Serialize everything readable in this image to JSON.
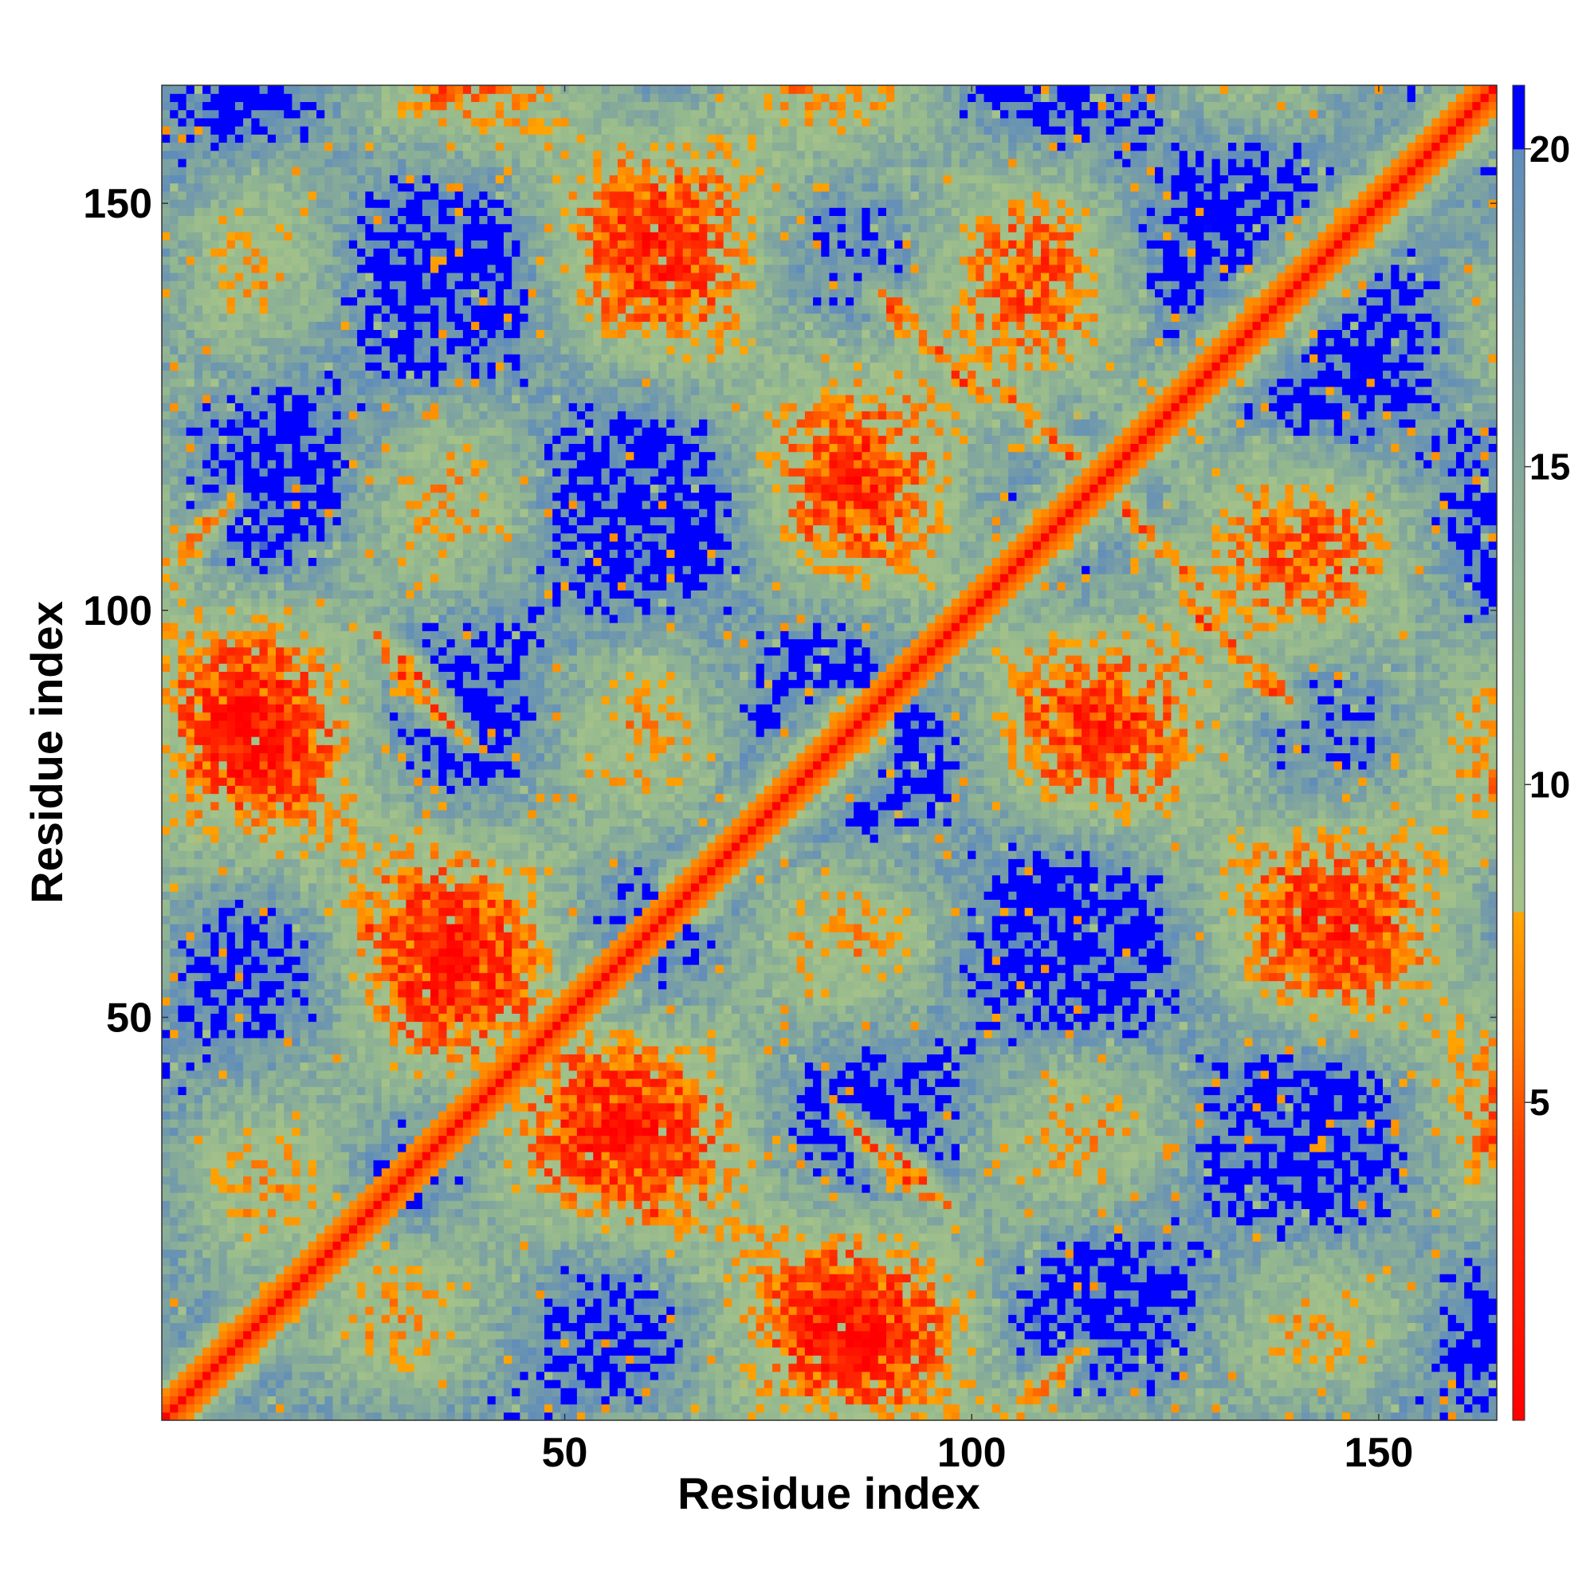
{
  "chart_data": {
    "type": "heatmap",
    "title": "",
    "xlabel": "Residue index",
    "ylabel": "Residue index",
    "n_residues": 164,
    "xlim": [
      1,
      164
    ],
    "ylim": [
      1,
      164
    ],
    "x_ticks": [
      50,
      100,
      150
    ],
    "y_ticks": [
      50,
      100,
      150
    ],
    "x_tick_labels": [
      "50",
      "100",
      "150"
    ],
    "y_tick_labels": [
      "50",
      "100",
      "150"
    ],
    "colorbar": {
      "range": [
        0,
        21
      ],
      "ticks": [
        5,
        10,
        15,
        20
      ],
      "tick_labels": [
        "5",
        "10",
        "15",
        "20"
      ],
      "placement": "right",
      "stops": [
        {
          "value": 0,
          "color": "#ff0000"
        },
        {
          "value": 4,
          "color": "#ff3300"
        },
        {
          "value": 6,
          "color": "#ff7700"
        },
        {
          "value": 8,
          "color": "#ffa500"
        },
        {
          "value": 8.01,
          "color": "#a4c289"
        },
        {
          "value": 12,
          "color": "#93b78f"
        },
        {
          "value": 16,
          "color": "#7ea3a0"
        },
        {
          "value": 20,
          "color": "#5f8cbb"
        },
        {
          "value": 20.01,
          "color": "#0000ff"
        },
        {
          "value": 21,
          "color": "#0000ff"
        }
      ]
    },
    "matrix_description": "Symmetric residue-residue distance map; near-zero (red) on the diagonal, far contacts saturate (blue).",
    "contact_features": [
      {
        "kind": "helix",
        "residues": [
          1,
          28
        ]
      },
      {
        "kind": "helix",
        "residues": [
          38,
          58
        ]
      },
      {
        "kind": "helix",
        "residues": [
          62,
          90
        ]
      },
      {
        "kind": "helix",
        "residues": [
          95,
          164
        ]
      },
      {
        "kind": "antiparallel",
        "i": [
          103,
          115
        ],
        "j": [
          119,
          128
        ]
      },
      {
        "kind": "antiparallel",
        "i": [
          90,
          101
        ],
        "j": [
          125,
          138
        ]
      },
      {
        "kind": "antiparallel",
        "i": [
          27,
          33
        ],
        "j": [
          87,
          97
        ]
      },
      {
        "kind": "antiparallel",
        "i": [
          57,
          64
        ],
        "j": [
          30,
          36
        ]
      },
      {
        "kind": "antiparallel",
        "i": [
          86,
          94
        ],
        "j": [
          29,
          36
        ]
      },
      {
        "kind": "antiparallel",
        "i": [
          128,
          137
        ],
        "j": [
          88,
          99
        ]
      },
      {
        "kind": "parallel",
        "i": [
          26,
          32
        ],
        "j": [
          61,
          68
        ]
      },
      {
        "kind": "parallel",
        "i": [
          1,
          7
        ],
        "j": [
          105,
          112
        ]
      }
    ],
    "grid": false
  }
}
